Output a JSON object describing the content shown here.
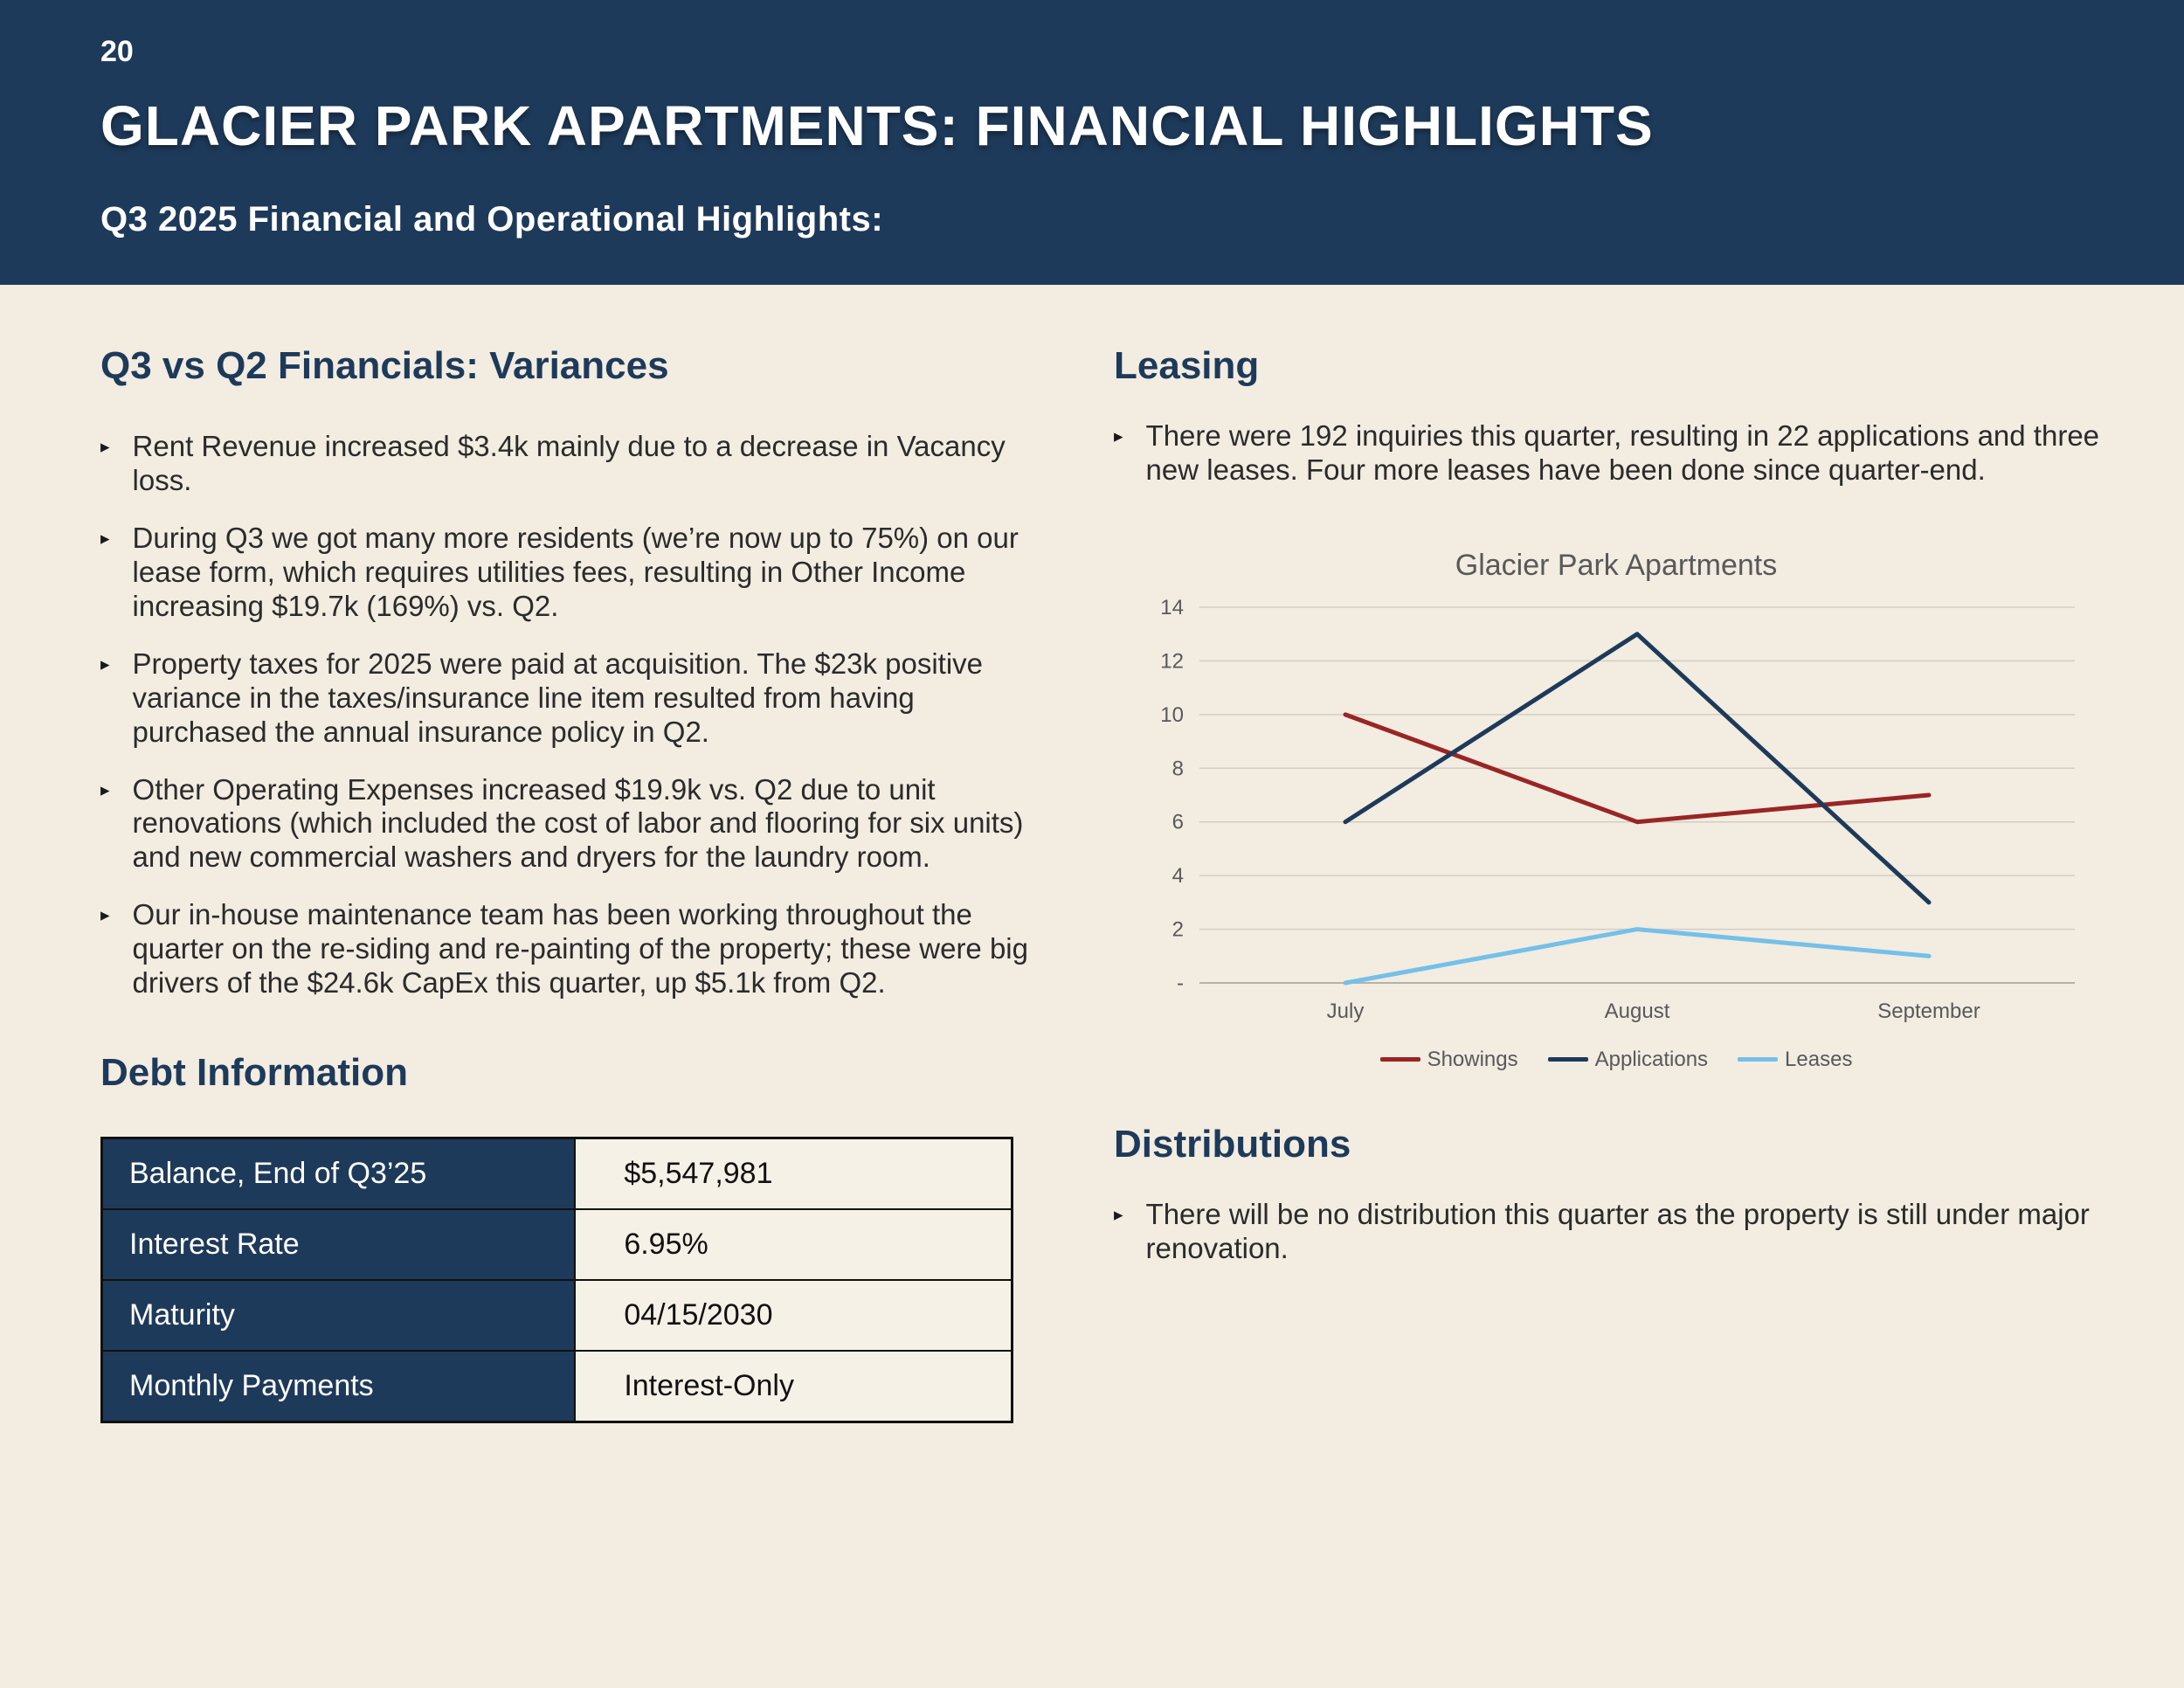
{
  "page": {
    "number": "20",
    "title": "GLACIER PARK APARTMENTS: FINANCIAL HIGHLIGHTS",
    "subtitle": "Q3 2025 Financial and Operational Highlights:"
  },
  "icons": {
    "bullet": "▸"
  },
  "colors": {
    "header_bg": "#1e3a5a",
    "body_bg": "#f2ece1",
    "heading": "#1e3a5a",
    "showings": "#992525",
    "applications": "#1e3a5a",
    "leases": "#74c0e8"
  },
  "left": {
    "variances_heading": "Q3 vs Q2 Financials: Variances",
    "bullets": [
      "Rent Revenue increased $3.4k mainly due to a decrease in Vacancy loss.",
      "During Q3 we got many more residents (we’re now up to 75%) on our lease form, which requires utilities fees, resulting in Other Income increasing $19.7k (169%) vs. Q2.",
      "Property taxes for 2025 were paid at acquisition. The $23k positive variance in the taxes/insurance line item resulted from having purchased the annual insurance policy in Q2.",
      "Other Operating Expenses increased $19.9k vs. Q2 due to unit renovations (which included the cost of labor and flooring for six units) and new commercial washers and dryers for the laundry room.",
      "Our in-house maintenance team has been working throughout the quarter on the re-siding and re-painting of the property; these were big drivers of the $24.6k CapEx this quarter, up $5.1k from Q2."
    ],
    "debt_heading": "Debt Information",
    "debt_rows": [
      {
        "label": "Balance, End of Q3’25",
        "value": "$5,547,981"
      },
      {
        "label": "Interest Rate",
        "value": "6.95%"
      },
      {
        "label": "Maturity",
        "value": "04/15/2030"
      },
      {
        "label": "Monthly Payments",
        "value": "Interest-Only"
      }
    ]
  },
  "right": {
    "leasing_heading": "Leasing",
    "leasing_bullets": [
      "There were 192 inquiries this quarter, resulting in 22 applications and three new leases. Four more leases have been done since quarter-end."
    ],
    "distributions_heading": "Distributions",
    "distributions_bullets": [
      "There will be no distribution this quarter as the property is still under major renovation."
    ]
  },
  "chart_data": {
    "type": "line",
    "title": "Glacier Park Apartments",
    "categories": [
      "July",
      "August",
      "September"
    ],
    "series": [
      {
        "name": "Showings",
        "color": "#992525",
        "values": [
          10,
          6,
          7
        ]
      },
      {
        "name": "Applications",
        "color": "#1e3a5a",
        "values": [
          6,
          13,
          3
        ]
      },
      {
        "name": "Leases",
        "color": "#74c0e8",
        "values": [
          0,
          2,
          1
        ]
      }
    ],
    "ylim": [
      0,
      14
    ],
    "yticks": [
      0,
      2,
      4,
      6,
      8,
      10,
      12,
      14
    ],
    "ytick_labels": [
      "-",
      "2",
      "4",
      "6",
      "8",
      "10",
      "12",
      "14"
    ],
    "grid": true,
    "legend_position": "bottom"
  }
}
